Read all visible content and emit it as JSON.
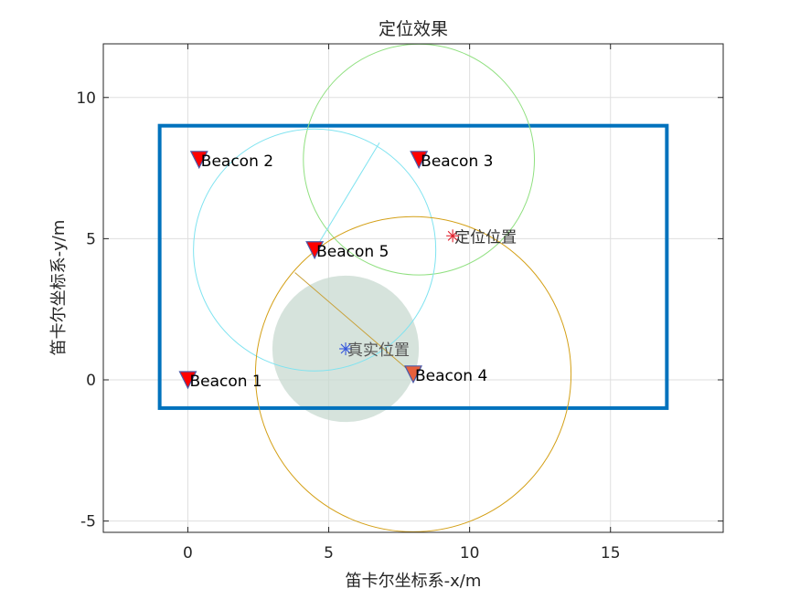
{
  "chart_data": {
    "type": "scatter",
    "title": "定位效果",
    "xlabel": "笛卡尔坐标系-x/m",
    "ylabel": "笛卡尔坐标系-y/m",
    "xlim": [
      -3,
      19
    ],
    "ylim": [
      -5.4,
      11.9
    ],
    "xticks": [
      0,
      5,
      10,
      15
    ],
    "yticks": [
      -5,
      0,
      5,
      10
    ],
    "grid": true,
    "room": {
      "x0": -1,
      "y0": -1,
      "x1": 17,
      "y1": 9,
      "color": "#0072BD"
    },
    "beacons": [
      {
        "label": "Beacon 1",
        "x": 0.0,
        "y": 0.0,
        "color": "#FF0000"
      },
      {
        "label": "Beacon 2",
        "x": 0.4,
        "y": 7.8,
        "color": "#FF0000"
      },
      {
        "label": "Beacon 3",
        "x": 8.2,
        "y": 7.8,
        "color": "#FF0000"
      },
      {
        "label": "Beacon 4",
        "x": 8.0,
        "y": 0.2,
        "color": "#E8603C"
      },
      {
        "label": "Beacon 5",
        "x": 4.5,
        "y": 4.6,
        "color": "#FF0000"
      }
    ],
    "range_circles": [
      {
        "cx": 8.2,
        "cy": 7.8,
        "r": 4.1,
        "color": "#90E080"
      },
      {
        "cx": 4.5,
        "cy": 4.6,
        "r": 4.3,
        "color": "#7FE3F0"
      },
      {
        "cx": 8.0,
        "cy": 0.2,
        "r": 5.6,
        "color": "#D4A017"
      }
    ],
    "radius_lines": [
      {
        "from": [
          4.5,
          4.6
        ],
        "to": [
          6.8,
          8.4
        ],
        "color": "#7FE3F0"
      },
      {
        "from": [
          8.0,
          0.2
        ],
        "to": [
          3.8,
          3.8
        ],
        "color": "#C8A038"
      }
    ],
    "true_position": {
      "label": "真实位置",
      "x": 5.6,
      "y": 1.1,
      "color": "#3355DD"
    },
    "estimated_position": {
      "label": "定位位置",
      "x": 9.4,
      "y": 5.1,
      "color": "#E0202C"
    },
    "error_region": {
      "cx": 5.6,
      "cy": 1.1,
      "r": 2.6,
      "color": "#C8DAD0"
    }
  }
}
